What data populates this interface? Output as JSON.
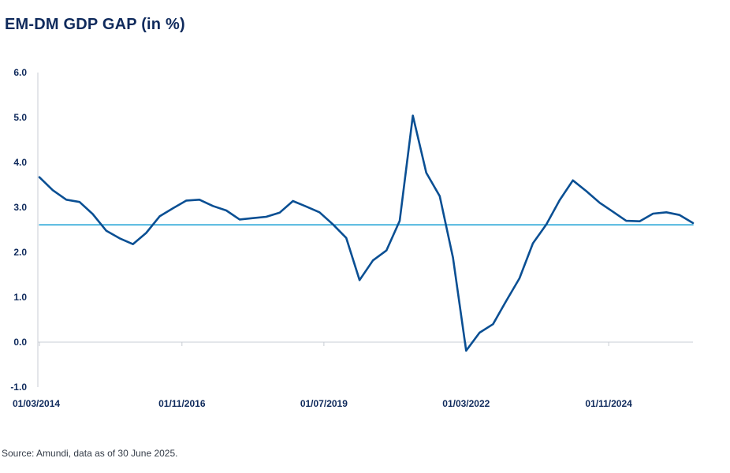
{
  "chart_data": {
    "type": "line",
    "title": "EM-DM GDP GAP (in %)",
    "xlabel": "",
    "ylabel": "",
    "ylim": [
      -1.0,
      6.0
    ],
    "y_ticks": [
      "6.0",
      "5.0",
      "4.0",
      "3.0",
      "2.0",
      "1.0",
      "0.0",
      "-1.0"
    ],
    "x_ticks": [
      "01/03/2014",
      "01/11/2016",
      "01/07/2019",
      "01/03/2022",
      "01/11/2024"
    ],
    "x_range": [
      "2014-03-01",
      "2026-06-01"
    ],
    "grid": false,
    "series": [
      {
        "color": "#0a4f93",
        "points": [
          [
            "2014-03-01",
            3.67
          ],
          [
            "2014-06-01",
            3.38
          ],
          [
            "2014-09-01",
            3.17
          ],
          [
            "2014-12-01",
            3.12
          ],
          [
            "2015-03-01",
            2.85
          ],
          [
            "2015-06-01",
            2.48
          ],
          [
            "2015-09-01",
            2.31
          ],
          [
            "2015-12-01",
            2.18
          ],
          [
            "2016-03-01",
            2.43
          ],
          [
            "2016-06-01",
            2.8
          ],
          [
            "2016-09-01",
            2.98
          ],
          [
            "2016-12-01",
            3.15
          ],
          [
            "2017-03-01",
            3.17
          ],
          [
            "2017-06-01",
            3.03
          ],
          [
            "2017-09-01",
            2.93
          ],
          [
            "2017-12-01",
            2.73
          ],
          [
            "2018-03-01",
            2.76
          ],
          [
            "2018-06-01",
            2.79
          ],
          [
            "2018-09-01",
            2.88
          ],
          [
            "2018-12-01",
            3.14
          ],
          [
            "2019-03-01",
            3.02
          ],
          [
            "2019-06-01",
            2.89
          ],
          [
            "2019-09-01",
            2.62
          ],
          [
            "2019-12-01",
            2.32
          ],
          [
            "2020-03-01",
            1.38
          ],
          [
            "2020-06-01",
            1.82
          ],
          [
            "2020-09-01",
            2.04
          ],
          [
            "2020-12-01",
            2.7
          ],
          [
            "2021-03-01",
            5.04
          ],
          [
            "2021-06-01",
            3.77
          ],
          [
            "2021-09-01",
            3.25
          ],
          [
            "2021-12-01",
            1.88
          ],
          [
            "2022-03-01",
            -0.19
          ],
          [
            "2022-06-01",
            0.21
          ],
          [
            "2022-09-01",
            0.4
          ],
          [
            "2022-12-01",
            0.92
          ],
          [
            "2023-03-01",
            1.42
          ],
          [
            "2023-06-01",
            2.2
          ],
          [
            "2023-09-01",
            2.62
          ],
          [
            "2023-12-01",
            3.16
          ],
          [
            "2024-03-01",
            3.6
          ],
          [
            "2024-06-01",
            3.36
          ],
          [
            "2024-09-01",
            3.1
          ],
          [
            "2024-12-01",
            2.9
          ],
          [
            "2025-03-01",
            2.7
          ],
          [
            "2025-06-01",
            2.69
          ],
          [
            "2025-09-01",
            2.86
          ],
          [
            "2025-12-01",
            2.89
          ],
          [
            "2026-03-01",
            2.83
          ],
          [
            "2026-06-01",
            2.65
          ]
        ]
      },
      {
        "color": "#2aa6d8",
        "points": [
          [
            "2014-03-01",
            2.61
          ],
          [
            "2026-06-01",
            2.61
          ]
        ]
      }
    ]
  },
  "footer": {
    "source": "Source: Amundi, data as of 30 June 2025."
  }
}
